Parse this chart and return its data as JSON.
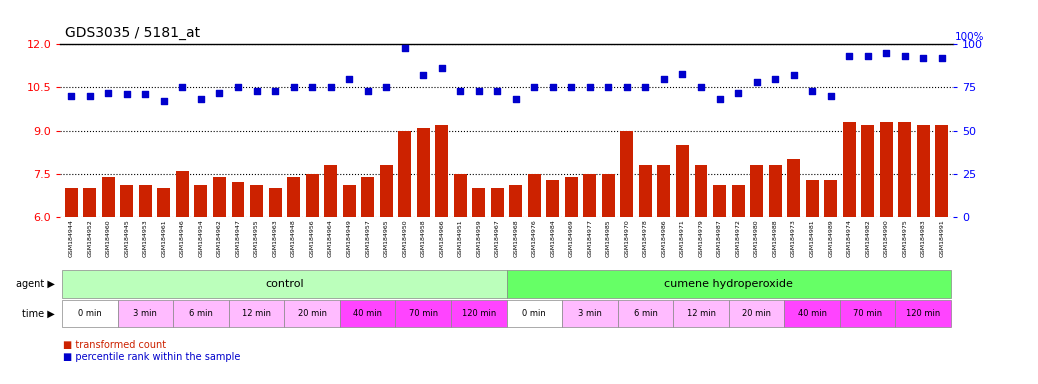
{
  "title": "GDS3035 / 5181_at",
  "bar_values": [
    7.0,
    7.0,
    7.4,
    7.1,
    7.1,
    7.0,
    7.6,
    7.1,
    7.4,
    7.2,
    7.1,
    7.0,
    7.4,
    7.5,
    7.8,
    7.1,
    7.4,
    7.8,
    9.0,
    9.1,
    9.2,
    7.5,
    7.0,
    7.0,
    7.1,
    7.5,
    7.3,
    7.4,
    7.5,
    7.5,
    9.0,
    7.8,
    7.8,
    8.5,
    7.8,
    7.1,
    7.1,
    7.8,
    7.8,
    8.0,
    7.3,
    7.3,
    9.3,
    9.2,
    9.3,
    9.3,
    9.2,
    9.2
  ],
  "dot_pct": [
    70,
    70,
    72,
    71,
    71,
    67,
    75,
    68,
    72,
    75,
    73,
    73,
    75,
    75,
    75,
    80,
    73,
    75,
    98,
    82,
    86,
    73,
    73,
    73,
    68,
    75,
    75,
    75,
    75,
    75,
    75,
    75,
    80,
    83,
    75,
    68,
    72,
    78,
    80,
    82,
    73,
    70,
    93,
    93,
    95,
    93,
    92,
    92
  ],
  "sample_labels": [
    "GSM184944",
    "GSM184952",
    "GSM184960",
    "GSM184945",
    "GSM184953",
    "GSM184961",
    "GSM184946",
    "GSM184954",
    "GSM184962",
    "GSM184947",
    "GSM184955",
    "GSM184963",
    "GSM184948",
    "GSM184956",
    "GSM184964",
    "GSM184949",
    "GSM184957",
    "GSM184965",
    "GSM184950",
    "GSM184958",
    "GSM184966",
    "GSM184951",
    "GSM184959",
    "GSM184967",
    "GSM184968",
    "GSM184976",
    "GSM184984",
    "GSM184969",
    "GSM184977",
    "GSM184985",
    "GSM184970",
    "GSM184978",
    "GSM184986",
    "GSM184971",
    "GSM184979",
    "GSM184987",
    "GSM184972",
    "GSM184980",
    "GSM184988",
    "GSM184973",
    "GSM184981",
    "GSM184989",
    "GSM184974",
    "GSM184982",
    "GSM184990",
    "GSM184975",
    "GSM184983",
    "GSM184991"
  ],
  "bar_color": "#CC2200",
  "dot_color": "#0000CC",
  "ylim_left": [
    6,
    12
  ],
  "ylim_right": [
    0,
    100
  ],
  "yticks_left": [
    6,
    7.5,
    9,
    10.5,
    12
  ],
  "yticks_right": [
    0,
    25,
    50,
    75,
    100
  ],
  "control_label": "control",
  "cumene_label": "cumene hydroperoxide",
  "time_groups": [
    "0 min",
    "3 min",
    "6 min",
    "12 min",
    "20 min",
    "40 min",
    "70 min",
    "120 min",
    "0 min",
    "3 min",
    "6 min",
    "12 min",
    "20 min",
    "40 min",
    "70 min",
    "120 min"
  ],
  "time_colors": [
    "#FFFFFF",
    "#FFBBFF",
    "#FFBBFF",
    "#FFBBFF",
    "#FFBBFF",
    "#FF44FF",
    "#FF44FF",
    "#FF44FF",
    "#FFFFFF",
    "#FFBBFF",
    "#FFBBFF",
    "#FFBBFF",
    "#FFBBFF",
    "#FF44FF",
    "#FF44FF",
    "#FF44FF"
  ],
  "control_color": "#BBFFBB",
  "cumene_color": "#66FF66",
  "legend_bar_label": "transformed count",
  "legend_dot_label": "percentile rank within the sample",
  "n_control": 24,
  "n_cumene": 24,
  "samples_per_time": 3
}
